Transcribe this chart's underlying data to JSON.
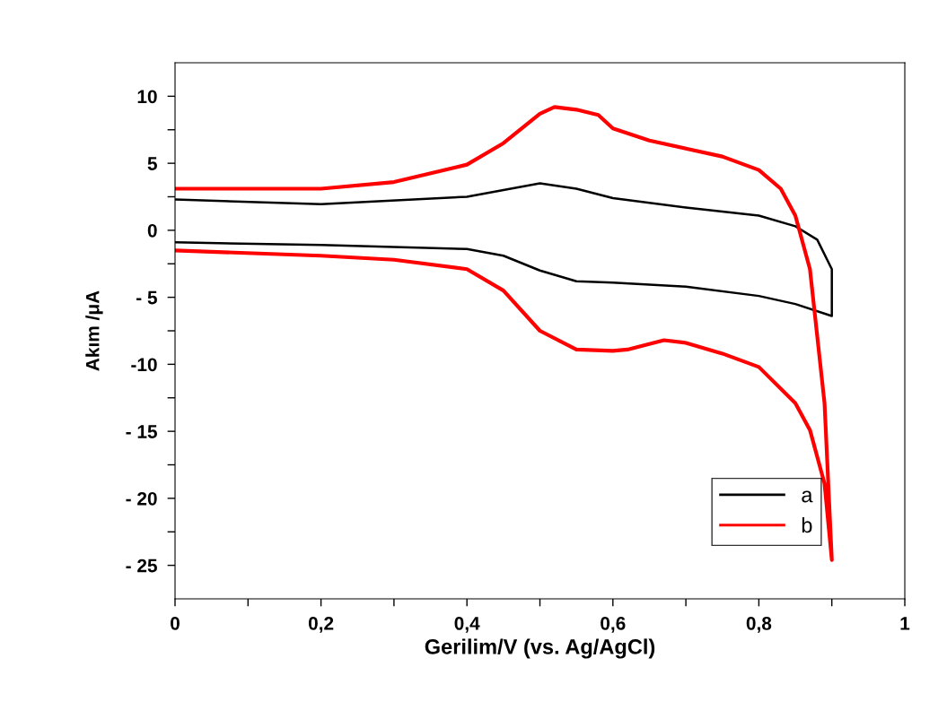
{
  "chart_data": {
    "type": "line",
    "xlabel": "Gerilim/V (vs. Ag/AgCl)",
    "ylabel": "Akım /μA",
    "xlim": [
      0,
      1
    ],
    "ylim": [
      -27.5,
      12.5
    ],
    "xticks": [
      0,
      {
        "value": 0.1,
        "label": null
      },
      {
        "value": 0.2,
        "label": "0,2"
      },
      {
        "value": 0.3,
        "label": null
      },
      {
        "value": 0.4,
        "label": "0,4"
      },
      {
        "value": 0.5,
        "label": null
      },
      {
        "value": 0.6,
        "label": "0,6"
      },
      {
        "value": 0.7,
        "label": null
      },
      {
        "value": 0.8,
        "label": "0,8"
      },
      {
        "value": 0.9,
        "label": null
      },
      1
    ],
    "yticks": [
      {
        "value": -25,
        "label": "- 25"
      },
      {
        "value": -22.5,
        "label": null
      },
      {
        "value": -20,
        "label": "- 20"
      },
      {
        "value": -17.5,
        "label": null
      },
      {
        "value": -15,
        "label": "- 15"
      },
      {
        "value": -12.5,
        "label": null
      },
      {
        "value": -10,
        "label": "-10"
      },
      {
        "value": -7.5,
        "label": null
      },
      {
        "value": -5,
        "label": "- 5"
      },
      {
        "value": -2.5,
        "label": null
      },
      0,
      {
        "value": 2.5,
        "label": null
      },
      5,
      {
        "value": 7.5,
        "label": null
      },
      10
    ],
    "grid": false,
    "legend": "bottom right",
    "marker": "none",
    "line_style": "solid",
    "series": [
      {
        "name": "a",
        "color": "#000000",
        "x": [
          0,
          0.2,
          0.4,
          0.45,
          0.5,
          0.55,
          0.6,
          0.7,
          0.8,
          0.85,
          0.88,
          0.9,
          0.9,
          0.85,
          0.8,
          0.7,
          0.6,
          0.55,
          0.5,
          0.45,
          0.4,
          0.2,
          0
        ],
        "values": [
          2.3,
          1.95,
          2.5,
          3.0,
          3.5,
          3.1,
          2.4,
          1.7,
          1.1,
          0.3,
          -0.7,
          -2.9,
          -6.4,
          -5.5,
          -4.9,
          -4.2,
          -3.9,
          -3.8,
          -3.0,
          -1.9,
          -1.4,
          -1.1,
          -0.9
        ]
      },
      {
        "name": "b",
        "color": "#ff0000",
        "x": [
          0,
          0.2,
          0.3,
          0.4,
          0.45,
          0.5,
          0.52,
          0.55,
          0.58,
          0.6,
          0.65,
          0.7,
          0.75,
          0.8,
          0.83,
          0.85,
          0.87,
          0.89,
          0.9,
          0.89,
          0.87,
          0.85,
          0.8,
          0.75,
          0.7,
          0.67,
          0.62,
          0.6,
          0.55,
          0.5,
          0.45,
          0.4,
          0.3,
          0.2,
          0
        ],
        "values": [
          3.1,
          3.1,
          3.6,
          4.9,
          6.5,
          8.7,
          9.2,
          9.0,
          8.6,
          7.6,
          6.7,
          6.1,
          5.5,
          4.5,
          3.1,
          1.1,
          -2.9,
          -12.9,
          -24.6,
          -18.9,
          -14.9,
          -12.9,
          -10.2,
          -9.2,
          -8.4,
          -8.2,
          -8.9,
          -9.0,
          -8.9,
          -7.5,
          -4.5,
          -2.9,
          -2.2,
          -1.9,
          -1.5
        ]
      }
    ]
  }
}
